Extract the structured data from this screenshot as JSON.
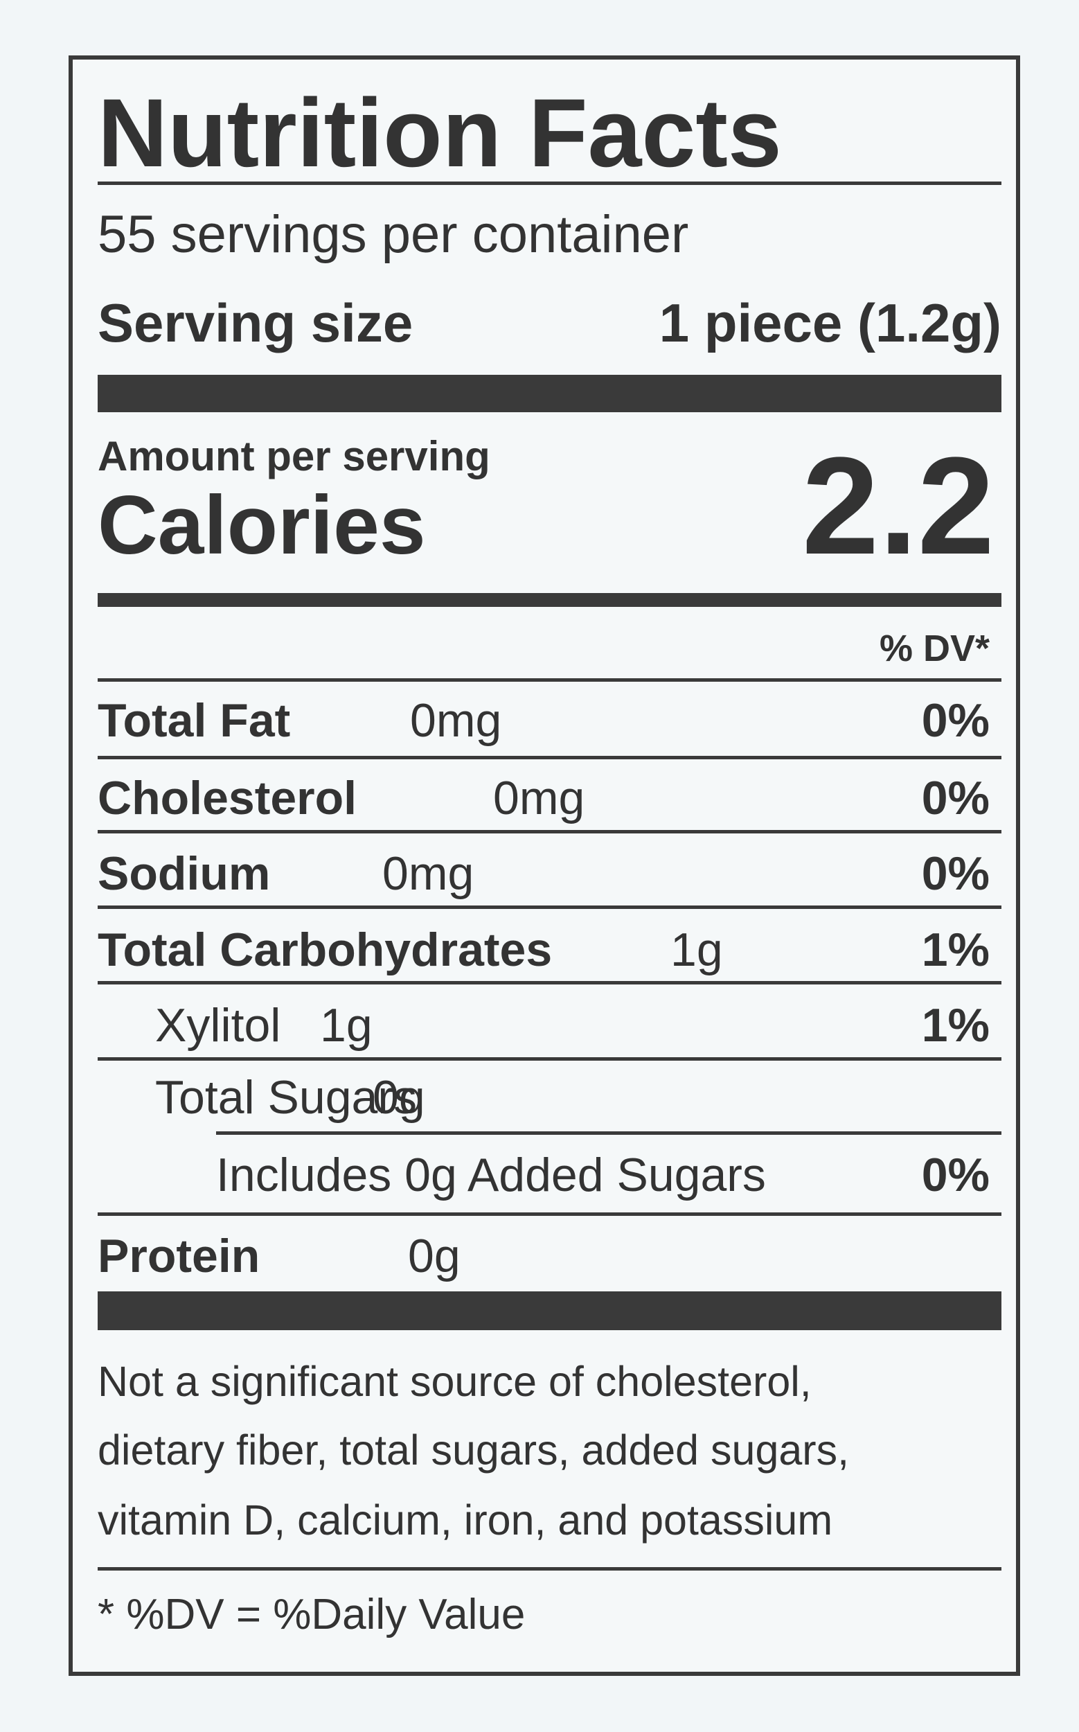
{
  "title": "Nutrition Facts",
  "servings": "55 servings per container",
  "serving_size": {
    "label": "Serving size",
    "value": "1 piece (1.2g)"
  },
  "amount_per_serving": "Amount per serving",
  "calories": {
    "label": "Calories",
    "value": "2.2"
  },
  "dv_header": "% DV*",
  "nutrients": [
    {
      "name": "Total Fat",
      "amount": "0mg",
      "dv": "0%"
    },
    {
      "name": "Cholesterol",
      "amount": "0mg",
      "dv": "0%"
    },
    {
      "name": "Sodium",
      "amount": "0mg",
      "dv": "0%"
    },
    {
      "name": "Total Carbohydrates",
      "amount": "1g",
      "dv": "1%"
    },
    {
      "name": "Xylitol",
      "amount": "1g",
      "dv": "1%"
    },
    {
      "name": "Total Sugars",
      "amount": "0g"
    },
    {
      "name": "Includes 0g Added Sugars",
      "dv": "0%"
    },
    {
      "name": "Protein",
      "amount": "0g"
    }
  ],
  "footnote": [
    "Not a significant source of cholesterol,",
    "dietary fiber, total sugars, added sugars,",
    "vitamin D, calcium, iron, and potassium"
  ],
  "dv_note": "* %DV = %Daily Value"
}
